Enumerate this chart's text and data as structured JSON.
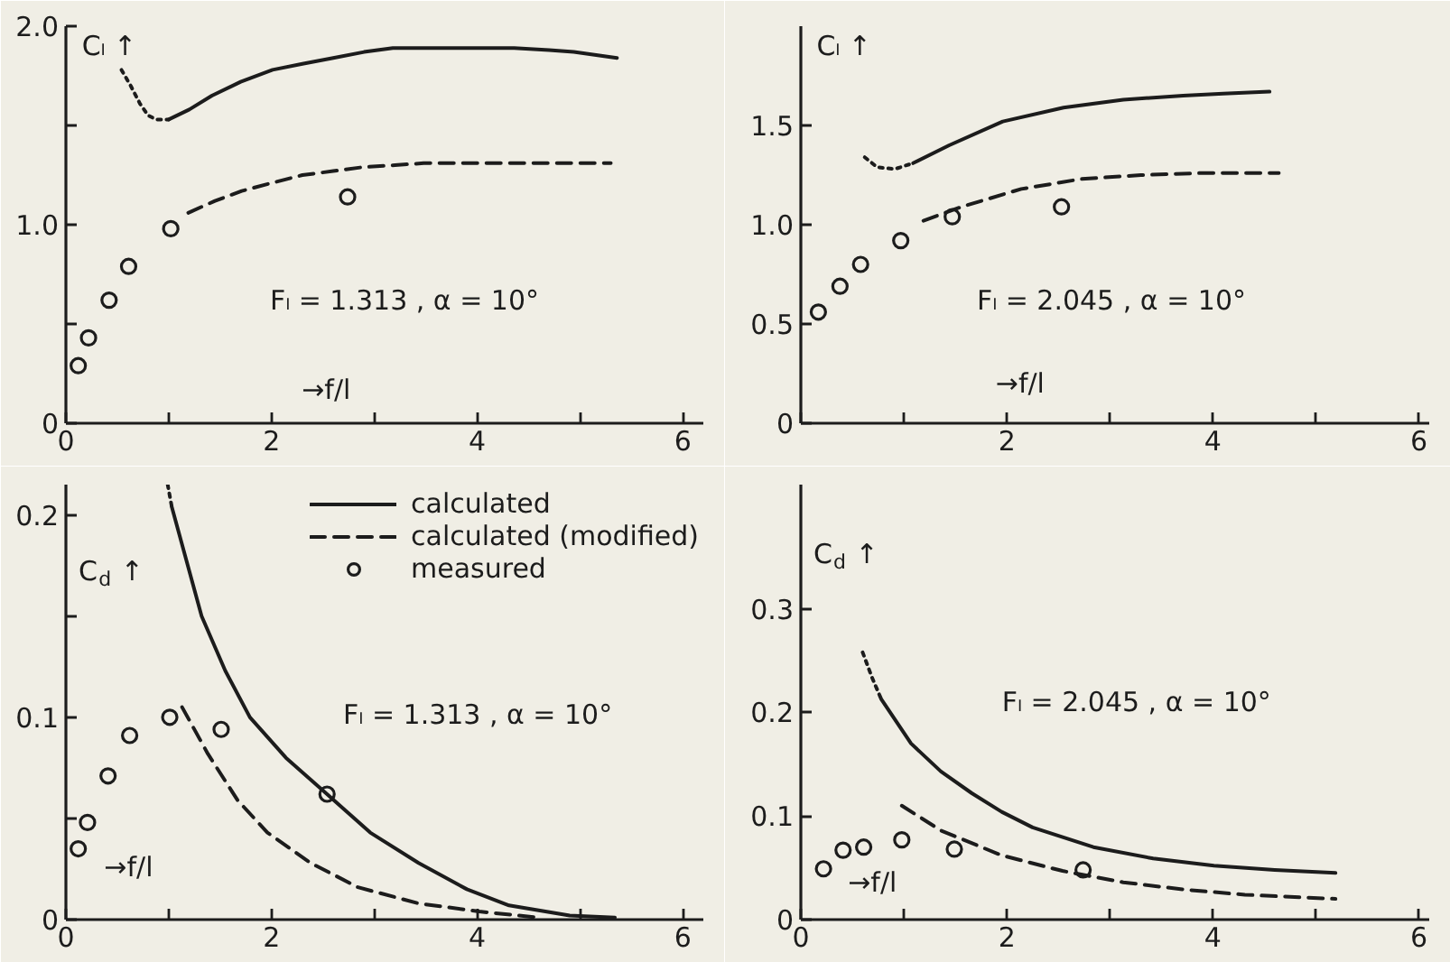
{
  "chart_data": [
    {
      "type": "line",
      "xlabel": "→f/l",
      "ylabel": "Cₗ ↑",
      "annotations": [
        "Fₗ = 1.313 , α = 10°"
      ],
      "xlim": [
        0,
        6.2
      ],
      "ylim": [
        0,
        2.0
      ],
      "xticks": [
        0,
        {
          "value": 1,
          "label": null
        },
        2,
        {
          "value": 3,
          "label": null
        },
        4,
        {
          "value": 5,
          "label": null
        },
        6
      ],
      "yticks": [
        0,
        {
          "value": 0.5,
          "label": null
        },
        {
          "value": 1,
          "label": "1.0"
        },
        {
          "value": 1.5,
          "label": null
        },
        {
          "value": 2,
          "label": "2.0"
        }
      ],
      "series": [
        {
          "line_style": "dotted",
          "color": "#1c1c1c",
          "x": [
            0.54,
            0.63,
            0.72,
            0.8,
            0.88,
            1.0
          ],
          "values": [
            1.78,
            1.7,
            1.61,
            1.55,
            1.53,
            1.53
          ]
        },
        {
          "line_style": "solid",
          "color": "#1c1c1c",
          "x": [
            1.0,
            1.2,
            1.42,
            1.7,
            2.01,
            2.3,
            2.6,
            2.9,
            3.18,
            3.5,
            3.77,
            4.1,
            4.36,
            4.7,
            4.94,
            5.36
          ],
          "values": [
            1.53,
            1.58,
            1.65,
            1.72,
            1.78,
            1.81,
            1.84,
            1.87,
            1.89,
            1.89,
            1.89,
            1.89,
            1.89,
            1.88,
            1.87,
            1.84
          ]
        },
        {
          "line_style": "dashed",
          "color": "#1c1c1c",
          "x": [
            1.19,
            1.45,
            1.71,
            2.0,
            2.3,
            2.6,
            2.89,
            3.2,
            3.48,
            4.06,
            4.7,
            5.3
          ],
          "values": [
            1.06,
            1.12,
            1.17,
            1.21,
            1.25,
            1.27,
            1.29,
            1.3,
            1.31,
            1.31,
            1.31,
            1.31
          ]
        },
        {
          "type": "scatter",
          "marker": "circle",
          "color": "#1c1c1c",
          "x": [
            0.12,
            0.22,
            0.42,
            0.61,
            1.02,
            2.74
          ],
          "values": [
            0.29,
            0.43,
            0.62,
            0.79,
            0.98,
            1.14
          ]
        }
      ]
    },
    {
      "type": "line",
      "xlabel": "→f/l",
      "ylabel": "Cₗ ↑",
      "annotations": [
        "Fₗ = 2.045 , α = 10°"
      ],
      "xlim": [
        0,
        6.1
      ],
      "ylim": [
        0,
        2.0
      ],
      "xticks": [
        {
          "value": 0,
          "label": null
        },
        {
          "value": 1,
          "label": null
        },
        2,
        {
          "value": 3,
          "label": null
        },
        4,
        {
          "value": 5,
          "label": null
        },
        6
      ],
      "yticks": [
        0,
        {
          "value": 0.5,
          "label": "0.5"
        },
        {
          "value": 1,
          "label": "1.0"
        },
        {
          "value": 1.5,
          "label": "1.5"
        }
      ],
      "series": [
        {
          "line_style": "dotted",
          "color": "#1c1c1c",
          "x": [
            0.62,
            0.74,
            0.91,
            1.09
          ],
          "values": [
            1.34,
            1.29,
            1.28,
            1.31
          ]
        },
        {
          "line_style": "solid",
          "color": "#1c1c1c",
          "x": [
            1.09,
            1.44,
            1.96,
            2.55,
            3.13,
            3.71,
            4.1,
            4.55
          ],
          "values": [
            1.31,
            1.4,
            1.52,
            1.59,
            1.63,
            1.65,
            1.66,
            1.67
          ]
        },
        {
          "line_style": "dashed",
          "color": "#1c1c1c",
          "x": [
            1.19,
            1.56,
            2.14,
            2.72,
            3.3,
            3.88,
            4.64
          ],
          "values": [
            1.02,
            1.09,
            1.18,
            1.23,
            1.25,
            1.26,
            1.26
          ]
        },
        {
          "type": "scatter",
          "marker": "circle",
          "color": "#1c1c1c",
          "x": [
            0.17,
            0.38,
            0.58,
            0.97,
            1.47,
            2.53
          ],
          "values": [
            0.56,
            0.69,
            0.8,
            0.92,
            1.04,
            1.09
          ]
        }
      ]
    },
    {
      "type": "line",
      "xlabel": "→f/l",
      "ylabel": "C$_{d}$ ↑",
      "annotations": [
        "Fₗ = 1.313 , α = 10°"
      ],
      "xlim": [
        0,
        6.2
      ],
      "ylim": [
        0,
        0.215
      ],
      "legend": "top right",
      "xticks": [
        0,
        {
          "value": 1,
          "label": null
        },
        2,
        {
          "value": 3,
          "label": null
        },
        4,
        {
          "value": 5,
          "label": null
        },
        6
      ],
      "yticks": [
        0,
        {
          "value": 0.05,
          "label": null
        },
        0.1,
        {
          "value": 0.15,
          "label": null
        },
        0.2
      ],
      "series": [
        {
          "line_style": "dotted",
          "color": "#1c1c1c",
          "x": [
            0.99,
            1.03
          ],
          "values": [
            0.215,
            0.204
          ]
        },
        {
          "line_style": "solid",
          "name": "calculated",
          "color": "#1c1c1c",
          "x": [
            1.03,
            1.32,
            1.55,
            1.79,
            2.14,
            2.54,
            2.96,
            3.43,
            3.9,
            4.31,
            4.9,
            5.34
          ],
          "values": [
            0.204,
            0.15,
            0.123,
            0.1,
            0.08,
            0.062,
            0.043,
            0.028,
            0.015,
            0.007,
            0.002,
            0.001
          ]
        },
        {
          "line_style": "dashed",
          "name": "calculated (modified)",
          "color": "#1c1c1c",
          "x": [
            1.13,
            1.38,
            1.67,
            1.96,
            2.38,
            2.84,
            3.43,
            4.02,
            4.6
          ],
          "values": [
            0.105,
            0.082,
            0.059,
            0.043,
            0.028,
            0.016,
            0.008,
            0.004,
            0.001
          ]
        },
        {
          "type": "scatter",
          "marker": "circle",
          "name": "measured",
          "color": "#1c1c1c",
          "x": [
            0.12,
            0.21,
            0.41,
            0.62,
            1.01,
            1.51,
            2.54
          ],
          "values": [
            0.035,
            0.048,
            0.071,
            0.091,
            0.1,
            0.094,
            0.062
          ]
        }
      ]
    },
    {
      "type": "line",
      "xlabel": "→f/l",
      "ylabel": "C$_{d}$ ↑",
      "annotations": [
        "Fₗ = 2.045 , α = 10°"
      ],
      "xlim": [
        0,
        6.1
      ],
      "ylim": [
        0,
        0.42
      ],
      "xticks": [
        0,
        {
          "value": 1,
          "label": null
        },
        2,
        {
          "value": 3,
          "label": null
        },
        4,
        {
          "value": 5,
          "label": null
        },
        6
      ],
      "yticks": [
        0,
        0.1,
        0.2,
        0.3
      ],
      "series": [
        {
          "line_style": "dotted",
          "color": "#1c1c1c",
          "x": [
            0.6,
            0.69,
            0.78
          ],
          "values": [
            0.258,
            0.234,
            0.213
          ]
        },
        {
          "line_style": "solid",
          "color": "#1c1c1c",
          "x": [
            0.78,
            1.07,
            1.36,
            1.66,
            1.95,
            2.25,
            2.84,
            3.42,
            4.01,
            4.6,
            5.19
          ],
          "values": [
            0.213,
            0.17,
            0.143,
            0.122,
            0.104,
            0.089,
            0.07,
            0.059,
            0.052,
            0.048,
            0.045
          ]
        },
        {
          "line_style": "dashed",
          "color": "#1c1c1c",
          "x": [
            0.98,
            1.36,
            1.95,
            2.54,
            3.13,
            3.72,
            4.31,
            5.19
          ],
          "values": [
            0.11,
            0.086,
            0.062,
            0.047,
            0.036,
            0.029,
            0.024,
            0.02
          ]
        },
        {
          "type": "scatter",
          "marker": "circle",
          "color": "#1c1c1c",
          "x": [
            0.22,
            0.41,
            0.61,
            0.98,
            1.49,
            2.74
          ],
          "values": [
            0.049,
            0.067,
            0.07,
            0.077,
            0.068,
            0.048
          ]
        }
      ]
    }
  ]
}
